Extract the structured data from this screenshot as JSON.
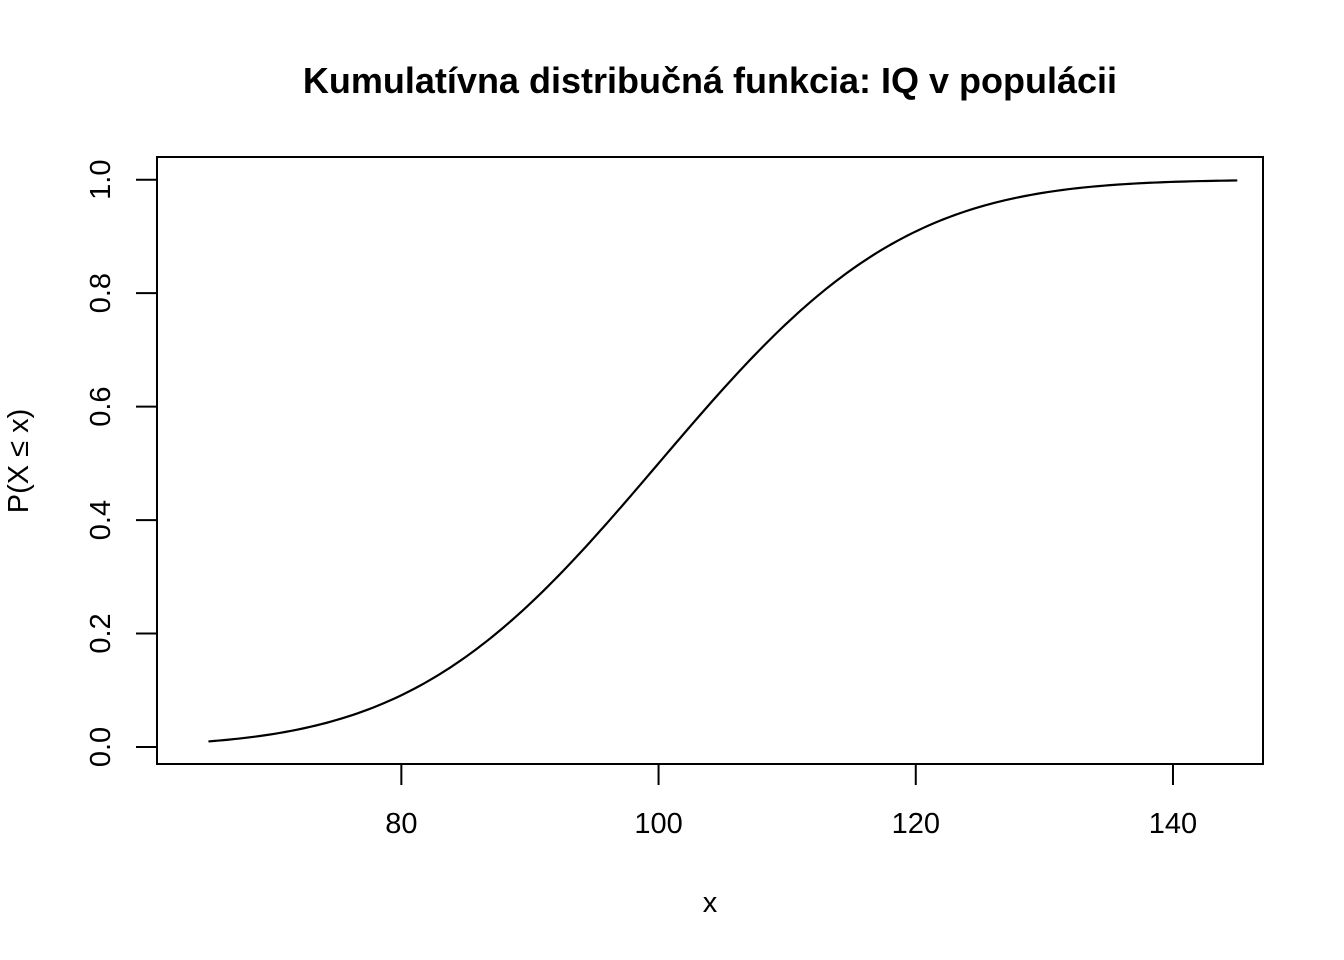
{
  "chart_data": {
    "type": "line",
    "title": "Kumulatívna distribučná funkcia: IQ v populácii",
    "xlabel": "x",
    "ylabel": "P(X ≤ x)",
    "xlim": [
      61,
      147
    ],
    "ylim": [
      -0.03,
      1.04
    ],
    "x_ticks": [
      80,
      100,
      120,
      140
    ],
    "y_ticks": [
      0.0,
      0.2,
      0.4,
      0.6,
      0.8,
      1.0
    ],
    "y_tick_labels": [
      "0.0",
      "0.2",
      "0.4",
      "0.6",
      "0.8",
      "1.0"
    ],
    "grid": false,
    "series": [
      {
        "x": [
          65,
          70,
          75,
          80,
          85,
          90,
          95,
          100,
          105,
          110,
          115,
          120,
          125,
          130,
          135,
          140,
          145
        ],
        "values": [
          0.0098,
          0.0228,
          0.0478,
          0.0912,
          0.1587,
          0.2525,
          0.3694,
          0.5,
          0.6306,
          0.7475,
          0.8413,
          0.9088,
          0.9522,
          0.9772,
          0.9902,
          0.9962,
          0.9987
        ]
      }
    ]
  }
}
